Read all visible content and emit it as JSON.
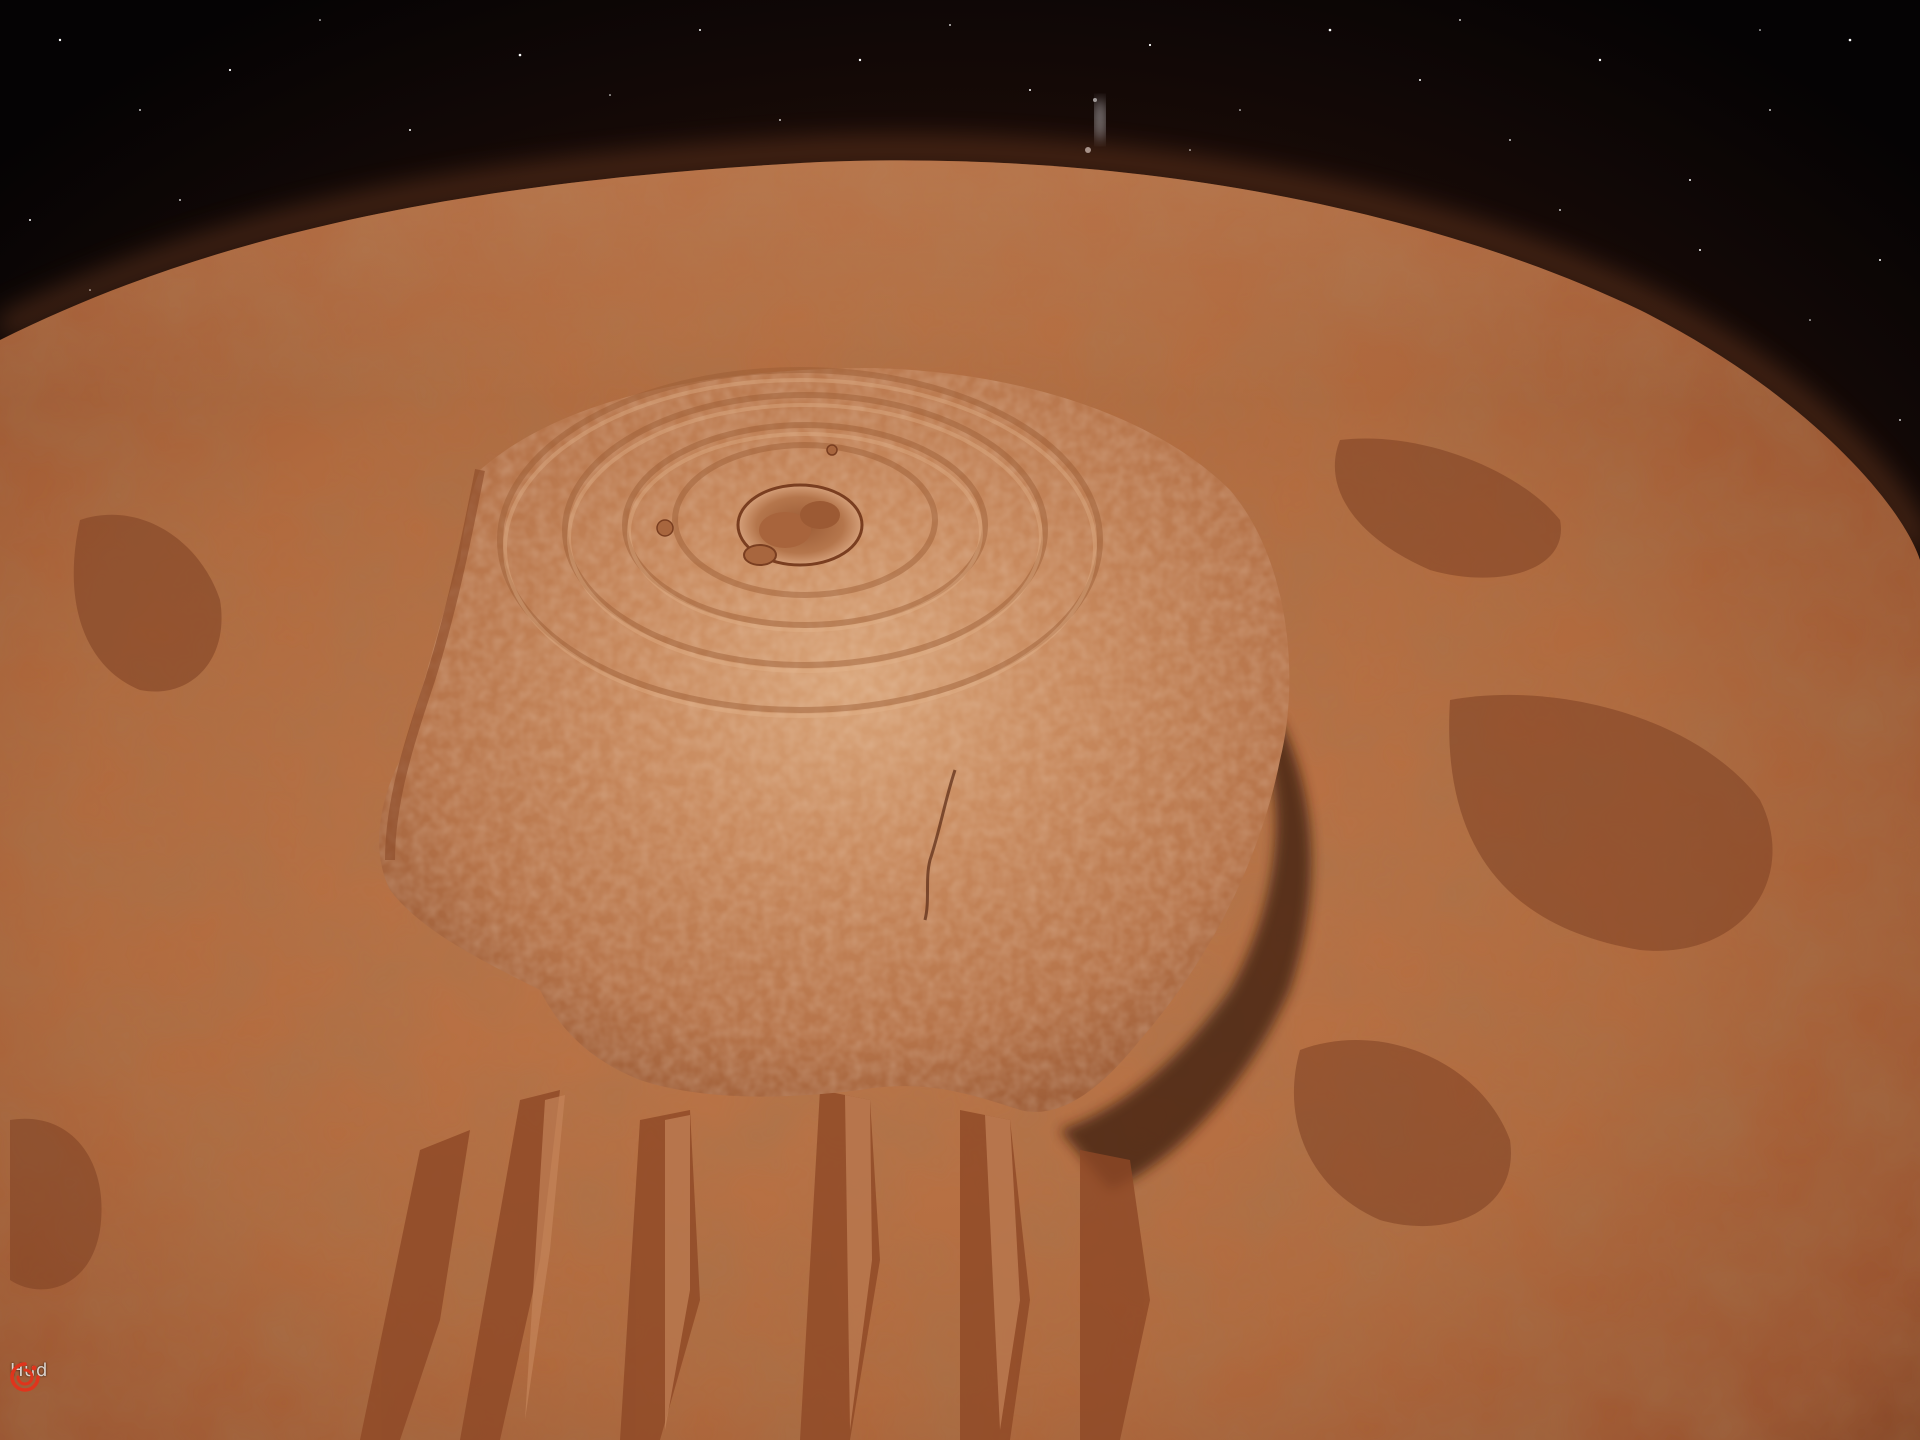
{
  "hud": {
    "label": "Hud",
    "icon": "power-swirl-icon",
    "accent_color": "#e0341c"
  },
  "scene": {
    "subject": "volcano",
    "palette": {
      "space": "#050304",
      "atmosphere_glow": "#5a2a14",
      "surface_dark": "#8a4a28",
      "surface_mid": "#b66c40",
      "surface_light": "#d99a6a",
      "shadow": "#3a1a0c",
      "stars": "#ffffff"
    }
  }
}
